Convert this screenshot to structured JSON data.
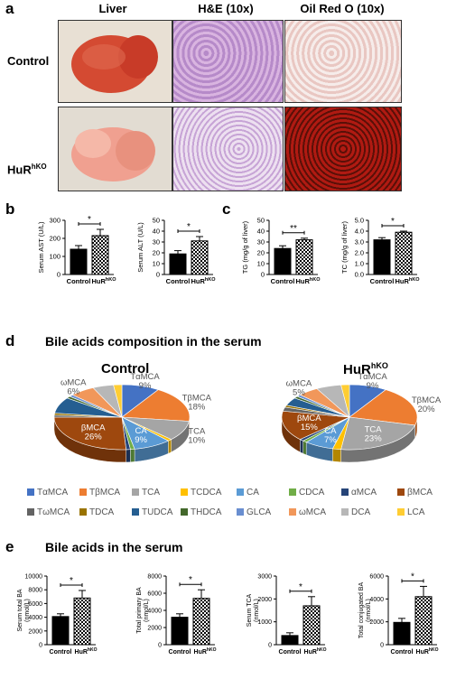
{
  "panel_labels": {
    "a": "a",
    "b": "b",
    "c": "c",
    "d": "d",
    "e": "e"
  },
  "panel_a": {
    "columns": [
      "Liver",
      "H&E (10x)",
      "Oil Red O (10x)"
    ],
    "row_control": "Control",
    "row_ko_base": "HuR",
    "row_ko_sup": "hKO"
  },
  "colors": {
    "bar_control": "#000000",
    "bar_ko_pattern": "checkered",
    "sig": "#000000"
  },
  "pie_title_d": "Bile acids composition in the serum",
  "pie_control_title": "Control",
  "pie_ko_title_base": "HuR",
  "pie_ko_title_sup": "hKO",
  "section_e_title": "Bile acids in the serum",
  "chart_data": [
    {
      "type": "bar",
      "panel": "b",
      "ylabel": "Serum AST (U/L)",
      "categories": [
        "Control",
        "HuRhKO"
      ],
      "values": [
        140,
        215
      ],
      "errors": [
        20,
        35
      ],
      "ylim": [
        0,
        300
      ],
      "yticks": [
        0,
        100,
        200,
        300
      ],
      "significance": "*"
    },
    {
      "type": "bar",
      "panel": "b",
      "ylabel": "Serum ALT (U/L)",
      "categories": [
        "Control",
        "HuRhKO"
      ],
      "values": [
        19,
        31
      ],
      "errors": [
        3,
        4
      ],
      "ylim": [
        0,
        50
      ],
      "yticks": [
        0,
        10,
        20,
        30,
        40,
        50
      ],
      "significance": "*"
    },
    {
      "type": "bar",
      "panel": "c",
      "ylabel": "TG (mg/g of liver)",
      "categories": [
        "Control",
        "HuRhKO"
      ],
      "values": [
        24,
        32
      ],
      "errors": [
        2.5,
        1.5
      ],
      "ylim": [
        0,
        50
      ],
      "yticks": [
        0,
        10,
        20,
        30,
        40,
        50
      ],
      "significance": "**"
    },
    {
      "type": "bar",
      "panel": "c",
      "ylabel": "TC (mg/g of liver)",
      "categories": [
        "Control",
        "HuRhKO"
      ],
      "values": [
        3.2,
        3.9
      ],
      "errors": [
        0.2,
        0.1
      ],
      "ylim": [
        0,
        5
      ],
      "yticks": [
        "0.0",
        "1.0",
        "2.0",
        "3.0",
        "4.0",
        "5.0"
      ],
      "significance": "*"
    },
    {
      "type": "pie",
      "panel": "d",
      "title": "Control",
      "labels": [
        "TαMCA",
        "TβMCA",
        "TCA",
        "TCDCA",
        "CA",
        "CDCA",
        "αMCA",
        "βMCA",
        "TωMCA",
        "TDCA",
        "TUDCA",
        "THDCA",
        "GLCA",
        "ωMCA",
        "DCA",
        "LCA"
      ],
      "values": [
        9,
        18,
        10,
        1,
        9,
        1,
        1,
        26,
        1,
        1,
        8,
        1,
        1,
        6,
        5,
        2
      ],
      "data_labels": [
        {
          "name": "TαMCA",
          "pct": "9%"
        },
        {
          "name": "TβMCA",
          "pct": "18%"
        },
        {
          "name": "TCA",
          "pct": "10%"
        },
        {
          "name": "CA",
          "pct": "9%"
        },
        {
          "name": "βMCA",
          "pct": "26%"
        },
        {
          "name": "ωMCA",
          "pct": "6%"
        }
      ]
    },
    {
      "type": "pie",
      "panel": "d",
      "title": "HuRhKO",
      "labels": [
        "TαMCA",
        "TβMCA",
        "TCA",
        "TCDCA",
        "CA",
        "CDCA",
        "αMCA",
        "βMCA",
        "TωMCA",
        "TDCA",
        "TUDCA",
        "THDCA",
        "GLCA",
        "ωMCA",
        "DCA",
        "LCA"
      ],
      "values": [
        9,
        20,
        23,
        2,
        7,
        1,
        1,
        15,
        2,
        1,
        4,
        1,
        1,
        5,
        6,
        2
      ],
      "data_labels": [
        {
          "name": "TαMCA",
          "pct": "9%"
        },
        {
          "name": "TβMCA",
          "pct": "20%"
        },
        {
          "name": "TCA",
          "pct": "23%"
        },
        {
          "name": "CA",
          "pct": "7%"
        },
        {
          "name": "βMCA",
          "pct": "15%"
        },
        {
          "name": "ωMCA",
          "pct": "5%"
        }
      ]
    },
    {
      "type": "bar",
      "panel": "e",
      "ylabel": "Serum total BA (nmol/L)",
      "categories": [
        "Control",
        "HuRhKO"
      ],
      "values": [
        4100,
        6800
      ],
      "errors": [
        400,
        1100
      ],
      "ylim": [
        0,
        10000
      ],
      "yticks": [
        0,
        2000,
        4000,
        6000,
        8000,
        10000
      ],
      "significance": "*"
    },
    {
      "type": "bar",
      "panel": "e",
      "ylabel": "Total primary BA (nmol/L)",
      "categories": [
        "Control",
        "HuRhKO"
      ],
      "values": [
        3200,
        5400
      ],
      "errors": [
        400,
        1000
      ],
      "ylim": [
        0,
        8000
      ],
      "yticks": [
        0,
        2000,
        4000,
        6000,
        8000
      ],
      "significance": "*"
    },
    {
      "type": "bar",
      "panel": "e",
      "ylabel": "Serum TCA (nmol/L)",
      "categories": [
        "Control",
        "HuRhKO"
      ],
      "values": [
        400,
        1700
      ],
      "errors": [
        120,
        400
      ],
      "ylim": [
        0,
        3000
      ],
      "yticks": [
        0,
        1000,
        2000,
        3000
      ],
      "significance": "*"
    },
    {
      "type": "bar",
      "panel": "e",
      "ylabel": "Total conjugated BA (nmol/L)",
      "categories": [
        "Control",
        "HuRhKO"
      ],
      "values": [
        1950,
        4200
      ],
      "errors": [
        350,
        900
      ],
      "ylim": [
        0,
        6000
      ],
      "yticks": [
        0,
        2000,
        4000,
        6000
      ],
      "significance": "*"
    }
  ],
  "legend": {
    "items": [
      {
        "name": "TαMCA",
        "color": "#4472c4"
      },
      {
        "name": "TβMCA",
        "color": "#ed7d31"
      },
      {
        "name": "TCA",
        "color": "#a5a5a5"
      },
      {
        "name": "TCDCA",
        "color": "#ffc000"
      },
      {
        "name": "CA",
        "color": "#5b9bd5"
      },
      {
        "name": "CDCA",
        "color": "#70ad47"
      },
      {
        "name": "αMCA",
        "color": "#264478"
      },
      {
        "name": "βMCA",
        "color": "#9e480e"
      },
      {
        "name": "TωMCA",
        "color": "#636363"
      },
      {
        "name": "TDCA",
        "color": "#997300"
      },
      {
        "name": "TUDCA",
        "color": "#255e91"
      },
      {
        "name": "THDCA",
        "color": "#43682b"
      },
      {
        "name": "GLCA",
        "color": "#698ed0"
      },
      {
        "name": "ωMCA",
        "color": "#f1975a"
      },
      {
        "name": "DCA",
        "color": "#b7b7b7"
      },
      {
        "name": "LCA",
        "color": "#ffcd33"
      }
    ]
  },
  "bar_xlabels": {
    "control": "Control",
    "ko_base": "HuR",
    "ko_sup": "hKO"
  }
}
